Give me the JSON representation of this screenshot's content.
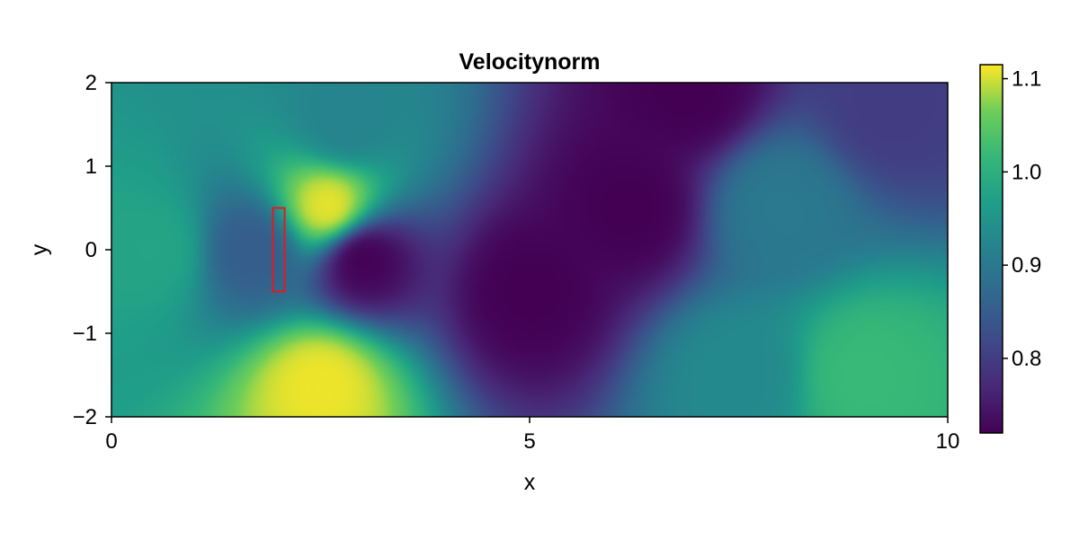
{
  "chart_data": {
    "type": "heatmap",
    "title": "Velocitynorm",
    "xlabel": "x",
    "ylabel": "y",
    "xlim": [
      0,
      10
    ],
    "ylim": [
      -2,
      2
    ],
    "x_ticks": [
      0,
      5,
      10
    ],
    "x_tick_labels": [
      "0",
      "5",
      "10"
    ],
    "y_ticks": [
      -2,
      -1,
      0,
      1,
      2
    ],
    "y_tick_labels": [
      "−2",
      "−1",
      "0",
      "1",
      "2"
    ],
    "colormap": "viridis",
    "colorbar": {
      "range": [
        0.72,
        1.115
      ],
      "ticks": [
        0.8,
        0.9,
        1.0,
        1.1
      ],
      "tick_labels": [
        "0.8",
        "0.9",
        "1.0",
        "1.1"
      ]
    },
    "obstacle": {
      "x": [
        1.93,
        2.07
      ],
      "y": [
        -0.5,
        0.5
      ],
      "outline_color": "#e31a1c"
    },
    "field_samples": [
      {
        "x": 0.5,
        "y": 0.0,
        "value": 0.98
      },
      {
        "x": 1.7,
        "y": 0.0,
        "value": 0.85
      },
      {
        "x": 2.6,
        "y": 0.5,
        "value": 1.11
      },
      {
        "x": 2.5,
        "y": -1.6,
        "value": 1.11
      },
      {
        "x": 3.0,
        "y": -0.1,
        "value": 0.72
      },
      {
        "x": 5.0,
        "y": -0.5,
        "value": 0.72
      },
      {
        "x": 6.2,
        "y": 0.5,
        "value": 0.72
      },
      {
        "x": 6.9,
        "y": 1.9,
        "value": 0.72
      },
      {
        "x": 2.8,
        "y": 1.5,
        "value": 0.92
      },
      {
        "x": 8.0,
        "y": 0.5,
        "value": 0.9
      },
      {
        "x": 9.3,
        "y": 1.7,
        "value": 0.8
      },
      {
        "x": 7.5,
        "y": -1.5,
        "value": 0.93
      },
      {
        "x": 9.0,
        "y": -1.5,
        "value": 1.02
      }
    ]
  }
}
